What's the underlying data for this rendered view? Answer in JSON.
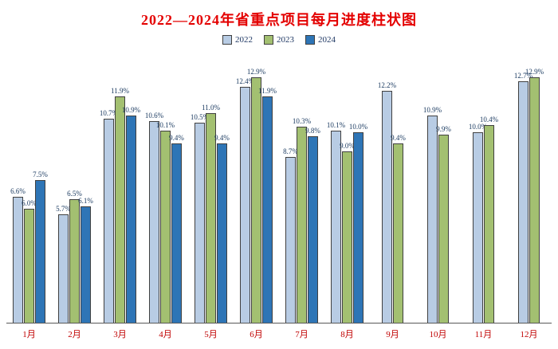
{
  "chart_data": {
    "type": "bar",
    "title": "2022—2024年省重点项目每月进度柱状图",
    "title_color": "#e40000",
    "xlabel": "",
    "ylabel": "",
    "ylim": [
      0,
      14.4
    ],
    "grid": false,
    "legend_position": "top",
    "value_suffix": "%",
    "value_label_color": "#17375e",
    "x_label_color": "#c00000",
    "axis_color": "#595959",
    "bar_border_color": "#404040",
    "categories": [
      "1月",
      "2月",
      "3月",
      "4月",
      "5月",
      "6月",
      "7月",
      "8月",
      "9月",
      "10月",
      "11月",
      "12月"
    ],
    "series": [
      {
        "name": "2022",
        "color": "#b8cce4",
        "values": [
          6.6,
          5.7,
          10.7,
          10.6,
          10.5,
          12.4,
          8.7,
          10.1,
          12.2,
          10.9,
          10.0,
          12.7
        ]
      },
      {
        "name": "2023",
        "color": "#a3c071",
        "values": [
          6.0,
          6.5,
          11.9,
          10.1,
          11.0,
          12.9,
          10.3,
          9.0,
          9.4,
          9.9,
          10.4,
          12.9
        ]
      },
      {
        "name": "2024",
        "color": "#2e75b6",
        "values": [
          7.5,
          6.1,
          10.9,
          9.4,
          9.4,
          11.9,
          9.8,
          10.0,
          null,
          null,
          null,
          null
        ]
      }
    ]
  }
}
